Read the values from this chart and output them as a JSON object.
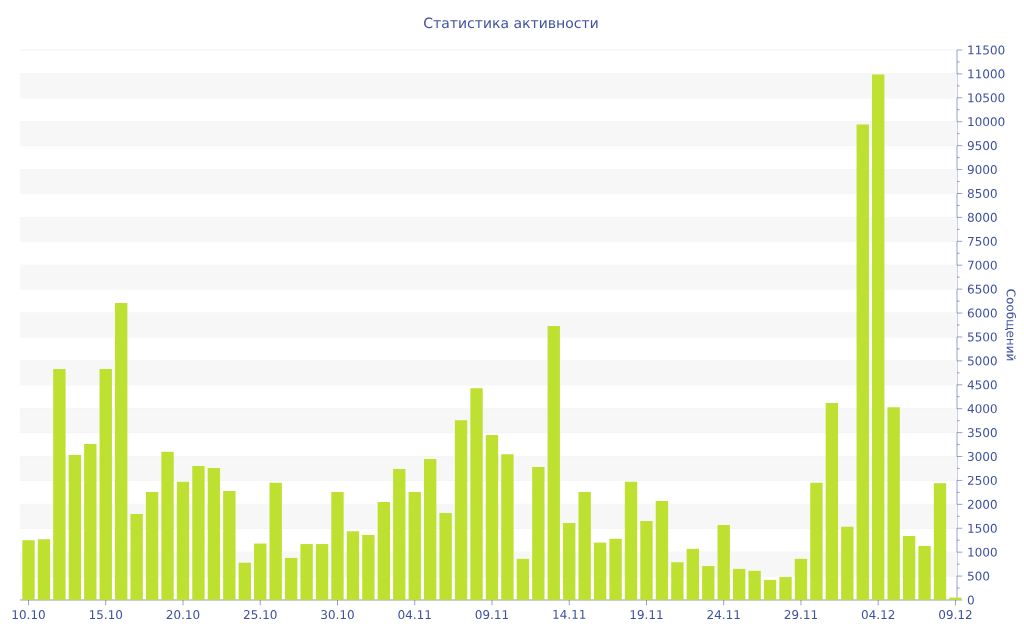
{
  "chart_data": {
    "type": "bar",
    "title": "Статистика активности",
    "ylabel": "Сообщений",
    "categories": [
      "10.10",
      null,
      null,
      null,
      null,
      "15.10",
      null,
      null,
      null,
      null,
      "20.10",
      null,
      null,
      null,
      null,
      "25.10",
      null,
      null,
      null,
      null,
      "30.10",
      null,
      null,
      null,
      null,
      "04.11",
      null,
      null,
      null,
      null,
      "09.11",
      null,
      null,
      null,
      null,
      "14.11",
      null,
      null,
      null,
      null,
      "19.11",
      null,
      null,
      null,
      null,
      "24.11",
      null,
      null,
      null,
      null,
      "29.11",
      null,
      null,
      null,
      null,
      "04.12",
      null,
      null,
      null,
      null,
      "09.12"
    ],
    "values": [
      1250,
      1270,
      4830,
      3030,
      3260,
      4830,
      6210,
      1800,
      2260,
      3100,
      2470,
      2800,
      2760,
      2280,
      780,
      1180,
      2450,
      880,
      1170,
      1170,
      2260,
      1440,
      1360,
      2050,
      2740,
      2260,
      2950,
      1820,
      3760,
      4430,
      3450,
      3050,
      860,
      2780,
      5730,
      1610,
      2260,
      1200,
      1280,
      2470,
      1650,
      2070,
      790,
      1070,
      710,
      1570,
      650,
      610,
      420,
      480,
      860,
      2450,
      4120,
      1530,
      9940,
      10990,
      4030,
      1340,
      1130,
      2440,
      50
    ],
    "color": "#bde031",
    "ylim": [
      0,
      11500
    ],
    "yticks": [
      0,
      500,
      1000,
      1500,
      2000,
      2500,
      3000,
      3500,
      4000,
      4500,
      5000,
      5500,
      6000,
      6500,
      7000,
      7500,
      8000,
      8500,
      9000,
      9500,
      10000,
      10500,
      11000,
      11500
    ],
    "grid": "y"
  }
}
